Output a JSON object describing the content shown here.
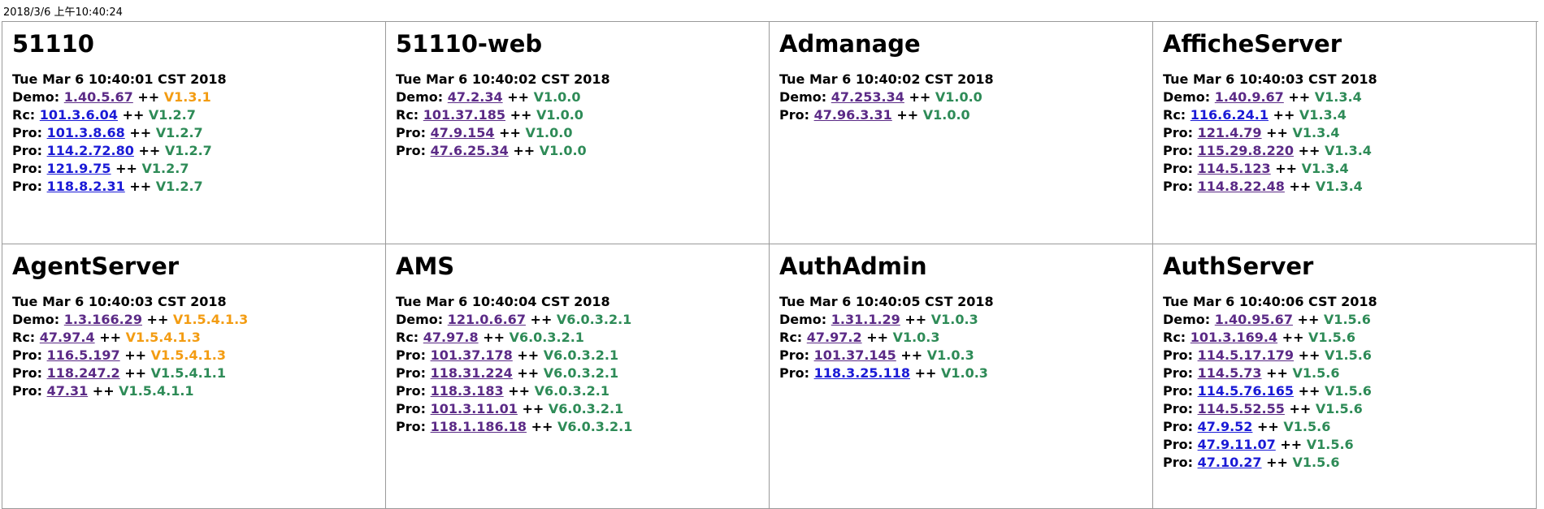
{
  "timestamp": "2018/3/6 上午10:40:24",
  "colors": {
    "orange": "#f39c12",
    "green": "#2e8b57",
    "visited": "#5b2a86",
    "link": "#1a1ad6"
  },
  "cells": [
    {
      "title": "51110",
      "date": "Tue Mar 6 10:40:01 CST 2018",
      "rows": [
        {
          "label": "Demo:",
          "ip": "1.40.5.67",
          "sep": "++",
          "version": "V1.3.1",
          "color": "orange",
          "link": "visited"
        },
        {
          "label": "Rc:",
          "ip": "101.3.6.04",
          "sep": "++",
          "version": "V1.2.7",
          "color": "green",
          "link": "link"
        },
        {
          "label": "Pro:",
          "ip": "101.3.8.68",
          "sep": "++",
          "version": "V1.2.7",
          "color": "green",
          "link": "link"
        },
        {
          "label": "Pro:",
          "ip": "114.2.72.80",
          "sep": "++",
          "version": "V1.2.7",
          "color": "green",
          "link": "link"
        },
        {
          "label": "Pro:",
          "ip": "121.9.75",
          "sep": "++",
          "version": "V1.2.7",
          "color": "green",
          "link": "link"
        },
        {
          "label": "Pro:",
          "ip": "118.8.2.31",
          "sep": "++",
          "version": "V1.2.7",
          "color": "green",
          "link": "link"
        }
      ]
    },
    {
      "title": "51110-web",
      "date": "Tue Mar 6 10:40:02 CST 2018",
      "rows": [
        {
          "label": "Demo:",
          "ip": "47.2.34",
          "sep": "++",
          "version": "V1.0.0",
          "color": "green",
          "link": "visited"
        },
        {
          "label": "Rc:",
          "ip": "101.37.185",
          "sep": "++",
          "version": "V1.0.0",
          "color": "green",
          "link": "visited"
        },
        {
          "label": "Pro:",
          "ip": "47.9.154",
          "sep": "++",
          "version": "V1.0.0",
          "color": "green",
          "link": "visited"
        },
        {
          "label": "Pro:",
          "ip": "47.6.25.34",
          "sep": "++",
          "version": "V1.0.0",
          "color": "green",
          "link": "visited"
        }
      ]
    },
    {
      "title": "Admanage",
      "date": "Tue Mar 6 10:40:02 CST 2018",
      "rows": [
        {
          "label": "Demo:",
          "ip": "47.253.34",
          "sep": "++",
          "version": "V1.0.0",
          "color": "green",
          "link": "visited"
        },
        {
          "label": "Pro:",
          "ip": "47.96.3.31",
          "sep": "++",
          "version": "V1.0.0",
          "color": "green",
          "link": "visited"
        }
      ]
    },
    {
      "title": "AfficheServer",
      "date": "Tue Mar 6 10:40:03 CST 2018",
      "rows": [
        {
          "label": "Demo:",
          "ip": "1.40.9.67",
          "sep": "++",
          "version": "V1.3.4",
          "color": "green",
          "link": "visited"
        },
        {
          "label": "Rc:",
          "ip": "116.6.24.1",
          "sep": "++",
          "version": "V1.3.4",
          "color": "green",
          "link": "link"
        },
        {
          "label": "Pro:",
          "ip": "121.4.79",
          "sep": "++",
          "version": "V1.3.4",
          "color": "green",
          "link": "visited"
        },
        {
          "label": "Pro:",
          "ip": "115.29.8.220",
          "sep": "++",
          "version": "V1.3.4",
          "color": "green",
          "link": "visited"
        },
        {
          "label": "Pro:",
          "ip": "114.5.123",
          "sep": "++",
          "version": "V1.3.4",
          "color": "green",
          "link": "visited"
        },
        {
          "label": "Pro:",
          "ip": "114.8.22.48",
          "sep": "++",
          "version": "V1.3.4",
          "color": "green",
          "link": "visited"
        }
      ]
    },
    {
      "title": "AgentServer",
      "date": "Tue Mar 6 10:40:03 CST 2018",
      "rows": [
        {
          "label": "Demo:",
          "ip": "1.3.166.29",
          "sep": "++",
          "version": "V1.5.4.1.3",
          "color": "orange",
          "link": "visited"
        },
        {
          "label": "Rc:",
          "ip": "47.97.4",
          "sep": "++",
          "version": "V1.5.4.1.3",
          "color": "orange",
          "link": "visited"
        },
        {
          "label": "Pro:",
          "ip": "116.5.197",
          "sep": "++",
          "version": "V1.5.4.1.3",
          "color": "orange",
          "link": "visited"
        },
        {
          "label": "Pro:",
          "ip": "118.247.2",
          "sep": "++",
          "version": "V1.5.4.1.1",
          "color": "green",
          "link": "visited"
        },
        {
          "label": "Pro:",
          "ip": "47.31",
          "sep": "++",
          "version": "V1.5.4.1.1",
          "color": "green",
          "link": "visited"
        }
      ]
    },
    {
      "title": "AMS",
      "date": "Tue Mar 6 10:40:04 CST 2018",
      "rows": [
        {
          "label": "Demo:",
          "ip": "121.0.6.67",
          "sep": "++",
          "version": "V6.0.3.2.1",
          "color": "green",
          "link": "visited"
        },
        {
          "label": "Rc:",
          "ip": "47.97.8",
          "sep": "++",
          "version": "V6.0.3.2.1",
          "color": "green",
          "link": "visited"
        },
        {
          "label": "Pro:",
          "ip": "101.37.178",
          "sep": "++",
          "version": "V6.0.3.2.1",
          "color": "green",
          "link": "visited"
        },
        {
          "label": "Pro:",
          "ip": "118.31.224",
          "sep": "++",
          "version": "V6.0.3.2.1",
          "color": "green",
          "link": "visited"
        },
        {
          "label": "Pro:",
          "ip": "118.3.183",
          "sep": "++",
          "version": "V6.0.3.2.1",
          "color": "green",
          "link": "visited"
        },
        {
          "label": "Pro:",
          "ip": "101.3.11.01",
          "sep": "++",
          "version": "V6.0.3.2.1",
          "color": "green",
          "link": "visited"
        },
        {
          "label": "Pro:",
          "ip": "118.1.186.18",
          "sep": "++",
          "version": "V6.0.3.2.1",
          "color": "green",
          "link": "visited"
        }
      ]
    },
    {
      "title": "AuthAdmin",
      "date": "Tue Mar 6 10:40:05 CST 2018",
      "rows": [
        {
          "label": "Demo:",
          "ip": "1.31.1.29",
          "sep": "++",
          "version": "V1.0.3",
          "color": "green",
          "link": "visited"
        },
        {
          "label": "Rc:",
          "ip": "47.97.2",
          "sep": "++",
          "version": "V1.0.3",
          "color": "green",
          "link": "visited"
        },
        {
          "label": "Pro:",
          "ip": "101.37.145",
          "sep": "++",
          "version": "V1.0.3",
          "color": "green",
          "link": "visited"
        },
        {
          "label": "Pro:",
          "ip": "118.3.25.118",
          "sep": "++",
          "version": "V1.0.3",
          "color": "green",
          "link": "link"
        }
      ]
    },
    {
      "title": "AuthServer",
      "date": "Tue Mar 6 10:40:06 CST 2018",
      "rows": [
        {
          "label": "Demo:",
          "ip": "1.40.95.67",
          "sep": "++",
          "version": "V1.5.6",
          "color": "green",
          "link": "visited"
        },
        {
          "label": "Rc:",
          "ip": "101.3.169.4",
          "sep": "++",
          "version": "V1.5.6",
          "color": "green",
          "link": "visited"
        },
        {
          "label": "Pro:",
          "ip": "114.5.17.179",
          "sep": "++",
          "version": "V1.5.6",
          "color": "green",
          "link": "visited"
        },
        {
          "label": "Pro:",
          "ip": "114.5.73",
          "sep": "++",
          "version": "V1.5.6",
          "color": "green",
          "link": "visited"
        },
        {
          "label": "Pro:",
          "ip": "114.5.76.165",
          "sep": "++",
          "version": "V1.5.6",
          "color": "green",
          "link": "link"
        },
        {
          "label": "Pro:",
          "ip": "114.5.52.55",
          "sep": "++",
          "version": "V1.5.6",
          "color": "green",
          "link": "visited"
        },
        {
          "label": "Pro:",
          "ip": "47.9.52",
          "sep": "++",
          "version": "V1.5.6",
          "color": "green",
          "link": "link"
        },
        {
          "label": "Pro:",
          "ip": "47.9.11.07",
          "sep": "++",
          "version": "V1.5.6",
          "color": "green",
          "link": "link"
        },
        {
          "label": "Pro:",
          "ip": "47.10.27",
          "sep": "++",
          "version": "V1.5.6",
          "color": "green",
          "link": "link"
        }
      ]
    }
  ]
}
